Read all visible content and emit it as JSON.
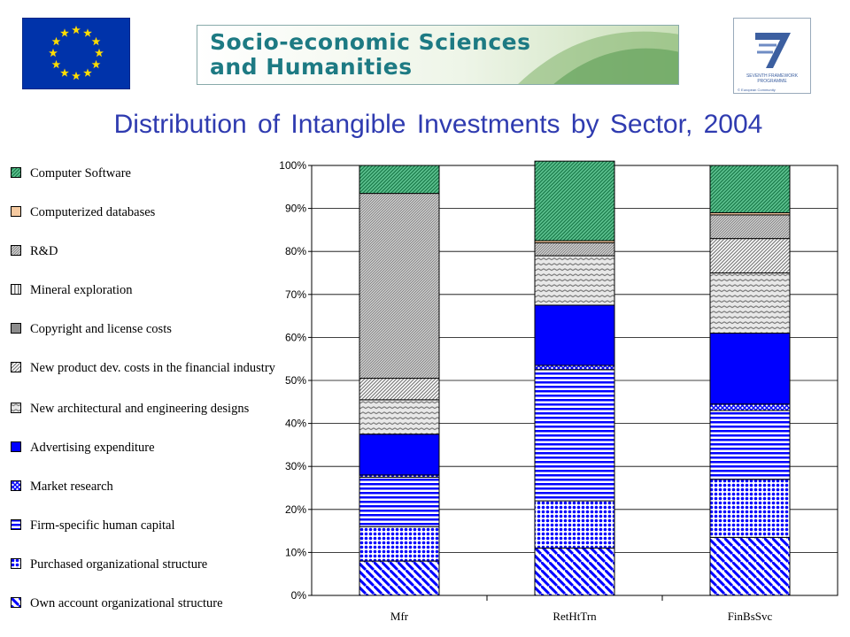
{
  "header": {
    "banner_line1": "Socio-economic Sciences",
    "banner_line2": "and Humanities",
    "fp7_line1": "SEVENTH FRAMEWORK",
    "fp7_line2": "PROGRAMME",
    "fp7_line3": "© European Community"
  },
  "colors": {
    "title": "#2f3bb0",
    "blue": "#0000ff",
    "green": "#2e9e6a",
    "gray": "#909090",
    "peach": "#f5c9a0"
  },
  "chart_data": {
    "type": "bar",
    "stacked": true,
    "percent": true,
    "title": "Distribution of Intangible Investments by Sector, 2004",
    "categories": [
      "Mfr",
      "RetHtTrn",
      "FinBsSvc"
    ],
    "yticks": [
      "0%",
      "10%",
      "20%",
      "30%",
      "40%",
      "50%",
      "60%",
      "70%",
      "80%",
      "90%",
      "100%"
    ],
    "ylim": [
      0,
      100
    ],
    "grid": true,
    "legend": "left",
    "series": [
      {
        "name": "Own account organizational structure",
        "values": [
          8,
          11,
          13.5
        ]
      },
      {
        "name": "Purchased organizational structure",
        "values": [
          8,
          11,
          13.5
        ]
      },
      {
        "name": "Firm-specific human capital",
        "values": [
          11.5,
          30.5,
          16
        ]
      },
      {
        "name": "Market research",
        "values": [
          0.5,
          1,
          1.5
        ]
      },
      {
        "name": "Advertising expenditure",
        "values": [
          9.5,
          14,
          16.5
        ]
      },
      {
        "name": "New architectural and engineering designs",
        "values": [
          8,
          11.5,
          14
        ]
      },
      {
        "name": "New product dev. costs in the financial industry",
        "values": [
          5,
          0,
          8
        ]
      },
      {
        "name": "Copyright and license costs",
        "values": [
          0,
          0,
          0
        ]
      },
      {
        "name": "Mineral exploration",
        "values": [
          0,
          0,
          0
        ]
      },
      {
        "name": "R&D",
        "values": [
          43,
          3,
          5.5
        ]
      },
      {
        "name": "Computerized databases",
        "values": [
          0,
          0.5,
          0.5
        ]
      },
      {
        "name": "Computer Software",
        "values": [
          6.5,
          18.5,
          11
        ]
      }
    ]
  }
}
